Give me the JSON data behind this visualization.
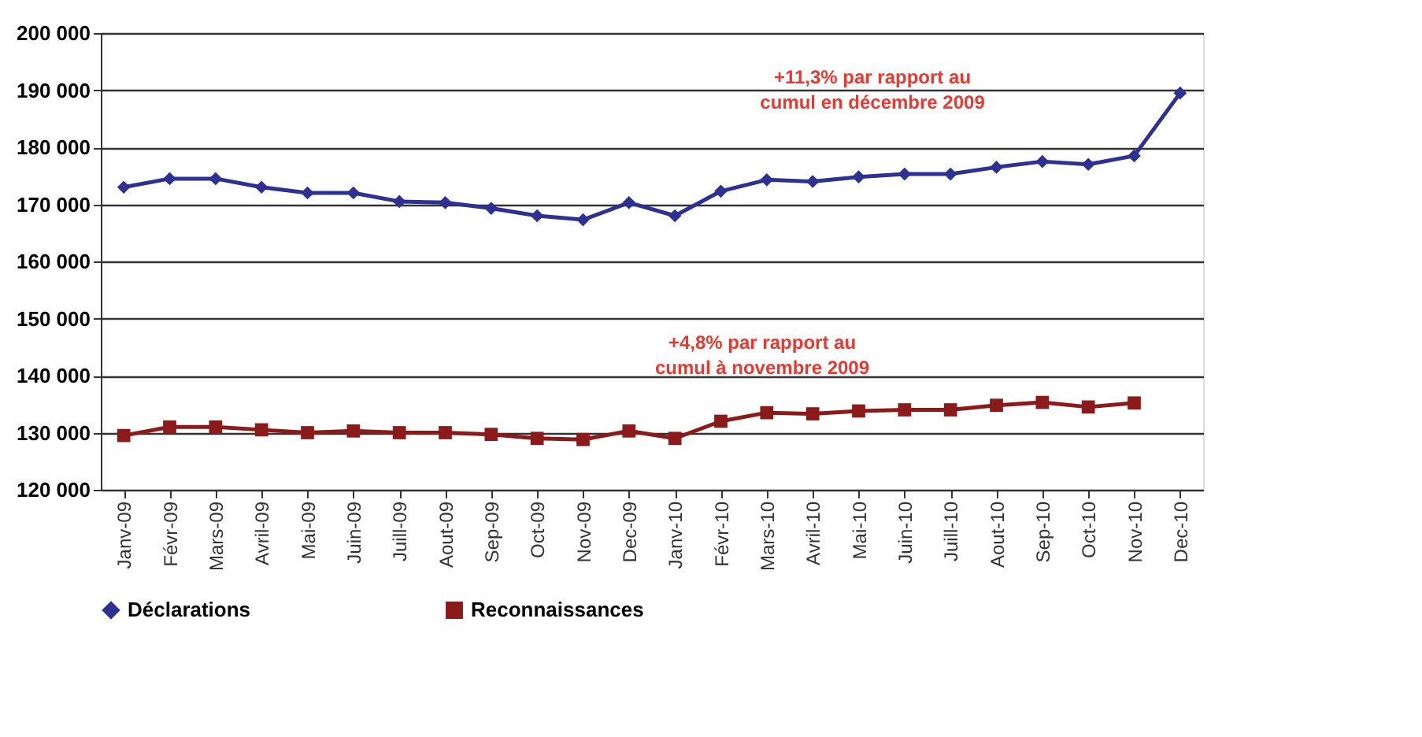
{
  "chart_data": {
    "type": "line",
    "categories": [
      "Janv-09",
      "Févr-09",
      "Mars-09",
      "Avril-09",
      "Mai-09",
      "Juin-09",
      "Juill-09",
      "Aout-09",
      "Sep-09",
      "Oct-09",
      "Nov-09",
      "Dec-09",
      "Janv-10",
      "Févr-10",
      "Mars-10",
      "Avril-10",
      "Mai-10",
      "Juin-10",
      "Juill-10",
      "Aout-10",
      "Sep-10",
      "Oct-10",
      "Nov-10",
      "Dec-10"
    ],
    "series": [
      {
        "name": "Déclarations",
        "color": "#2e3192",
        "marker": "diamond",
        "values": [
          173000,
          174500,
          174500,
          173000,
          172000,
          172000,
          170500,
          170300,
          169300,
          168000,
          167300,
          170300,
          168000,
          172300,
          174300,
          174000,
          174800,
          175300,
          175300,
          176500,
          177500,
          177000,
          178500,
          189500
        ]
      },
      {
        "name": "Reconnaissances",
        "color": "#8b1a1a",
        "marker": "square",
        "values": [
          129500,
          131000,
          131000,
          130500,
          130000,
          130300,
          130000,
          130000,
          129700,
          129000,
          128800,
          130300,
          129000,
          132000,
          133500,
          133300,
          133800,
          134000,
          134000,
          134800,
          135300,
          134500,
          135200,
          null
        ]
      }
    ],
    "ylim": [
      120000,
      200000
    ],
    "yticks": [
      {
        "value": 120000,
        "label": "120 000"
      },
      {
        "value": 130000,
        "label": "130 000"
      },
      {
        "value": 140000,
        "label": "140 000"
      },
      {
        "value": 150000,
        "label": "150 000"
      },
      {
        "value": 160000,
        "label": "160 000"
      },
      {
        "value": 170000,
        "label": "170 000"
      },
      {
        "value": 180000,
        "label": "180 000"
      },
      {
        "value": 190000,
        "label": "190 000"
      },
      {
        "value": 200000,
        "label": "200 000"
      }
    ],
    "grid": "y",
    "legend": "bottom",
    "line_style": "solid",
    "annotations": [
      "+11,3%  par rapport au\ncumul en décembre 2009",
      "+4,8%  par rapport au\ncumul à novembre 2009"
    ]
  }
}
